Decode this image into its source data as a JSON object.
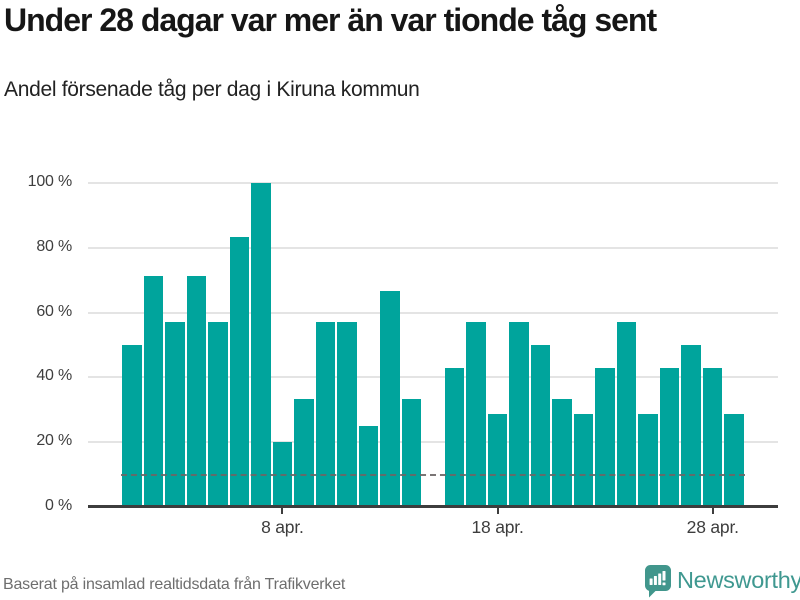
{
  "header": {
    "title": "Under 28 dagar var mer än var tionde tåg sent",
    "subtitle": "Andel försenade tåg per dag i Kiruna kommun"
  },
  "chart_data": {
    "type": "bar",
    "title": "Under 28 dagar var mer än var tionde tåg sent",
    "subtitle": "Andel försenade tåg per dag i Kiruna kommun",
    "unit": "%",
    "x_days_april": [
      1,
      2,
      3,
      4,
      5,
      6,
      7,
      8,
      9,
      10,
      11,
      12,
      13,
      14,
      15,
      16,
      17,
      18,
      19,
      20,
      21,
      22,
      23,
      24,
      25,
      26,
      27,
      28,
      29
    ],
    "values": [
      50,
      71.4,
      57.1,
      71.4,
      57.1,
      83.3,
      100,
      20,
      33.3,
      57.1,
      57.1,
      25,
      66.7,
      33.3,
      null,
      42.9,
      57.1,
      28.6,
      57.1,
      50,
      33.3,
      28.6,
      42.9,
      57.1,
      28.6,
      42.9,
      50,
      42.9,
      28.6
    ],
    "missing_day": 15,
    "x_ticks": [
      {
        "day": 8,
        "label": "8 apr."
      },
      {
        "day": 18,
        "label": "18 apr."
      },
      {
        "day": 28,
        "label": "28 apr."
      }
    ],
    "y_ticks": [
      {
        "value": 100,
        "label": "100 %"
      },
      {
        "value": 80,
        "label": "80 %"
      },
      {
        "value": 60,
        "label": "60 %"
      },
      {
        "value": 40,
        "label": "40 %"
      },
      {
        "value": 20,
        "label": "20 %"
      },
      {
        "value": 0,
        "label": "0 %"
      }
    ],
    "ylim": [
      0,
      100
    ],
    "grid": "horizontal",
    "legend": "none",
    "reference_line": {
      "value": 10,
      "style": "dashed"
    },
    "bar_color": "#00a49c"
  },
  "footer": {
    "source": "Baserat på insamlad realtidsdata från Trafikverket",
    "brand_name": "Newsworthy"
  },
  "colors": {
    "bar": "#00a49c",
    "title": "#161616",
    "axis": "#3d3d3d",
    "gridline": "#e4e4e4",
    "reference_line": "#6c6666",
    "source_text": "#6e6e6e",
    "brand_teal": "#3f9890",
    "logo_bubble": "#41968c"
  }
}
